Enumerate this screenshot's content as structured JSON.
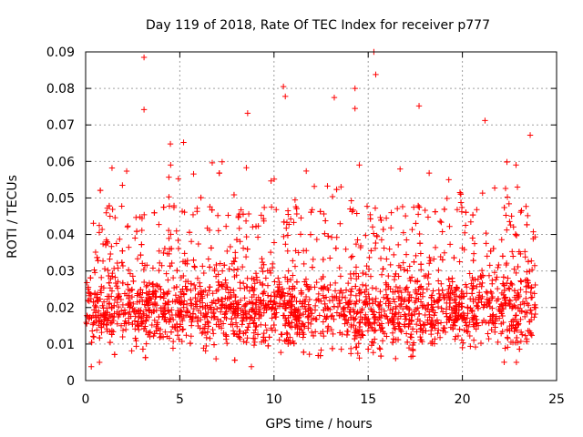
{
  "chart_data": {
    "type": "scatter",
    "title": "Day 119 of 2018, Rate Of TEC Index for receiver p777",
    "xlabel": "GPS time / hours",
    "ylabel": "ROTI / TECUs",
    "xlim": [
      0,
      25
    ],
    "ylim": [
      0,
      0.09
    ],
    "grid": true,
    "marker": "+",
    "color": "#ff0000",
    "x_ticks": [
      0,
      5,
      10,
      15,
      20,
      25
    ],
    "x_tick_labels": [
      "0",
      "5",
      "10",
      "15",
      "20",
      "25"
    ],
    "y_ticks": [
      0,
      0.01,
      0.02,
      0.03,
      0.04,
      0.05,
      0.06,
      0.07,
      0.08,
      0.09
    ],
    "y_tick_labels": [
      "0",
      "0.01",
      "0.02",
      "0.03",
      "0.04",
      "0.05",
      "0.06",
      "0.07",
      "0.08",
      "0.09"
    ],
    "data_x_range": [
      0,
      23.9
    ],
    "bulk_range": [
      0.008,
      0.035
    ],
    "notable_points": [
      {
        "x": 3.1,
        "y": 0.0885
      },
      {
        "x": 15.3,
        "y": 0.09
      },
      {
        "x": 15.4,
        "y": 0.0838
      },
      {
        "x": 10.5,
        "y": 0.0805
      },
      {
        "x": 14.3,
        "y": 0.08
      },
      {
        "x": 10.6,
        "y": 0.0778
      },
      {
        "x": 13.2,
        "y": 0.0775
      },
      {
        "x": 17.7,
        "y": 0.0752
      },
      {
        "x": 3.1,
        "y": 0.0742
      },
      {
        "x": 8.6,
        "y": 0.0732
      },
      {
        "x": 14.3,
        "y": 0.0745
      },
      {
        "x": 21.2,
        "y": 0.0712
      },
      {
        "x": 23.6,
        "y": 0.0672
      },
      {
        "x": 5.2,
        "y": 0.0652
      },
      {
        "x": 4.5,
        "y": 0.0648
      },
      {
        "x": 1.4,
        "y": 0.0582
      },
      {
        "x": 0.3,
        "y": 0.0038
      },
      {
        "x": 8.8,
        "y": 0.0038
      }
    ]
  }
}
